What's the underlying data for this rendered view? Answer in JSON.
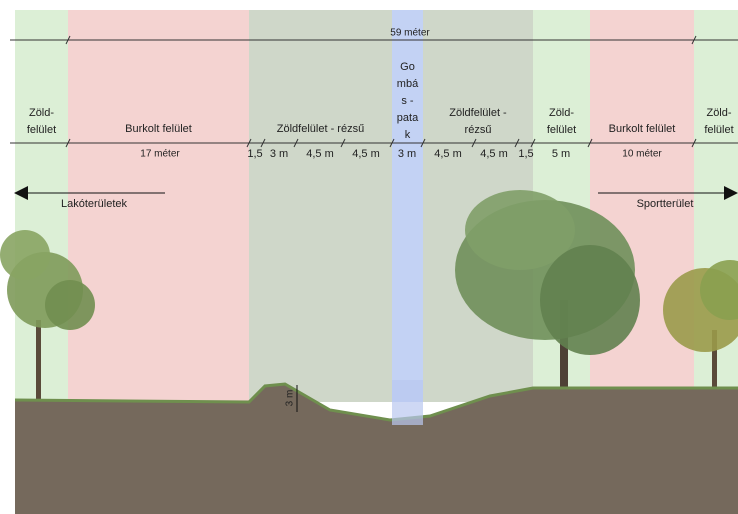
{
  "overall_dimension": "59 méter",
  "zones": [
    {
      "label": [
        "Zöld-",
        "felület"
      ]
    },
    {
      "label": [
        "Burkolt felület"
      ]
    },
    {
      "label": [
        "Zöldfelület - rézsű"
      ]
    },
    {
      "label": [
        "Go",
        "mbá",
        "s -",
        "pata",
        "k"
      ]
    },
    {
      "label": [
        "Zöldfelület -",
        "rézsű"
      ]
    },
    {
      "label": [
        "Zöld-",
        "felület"
      ]
    },
    {
      "label": [
        "Burkolt felület"
      ]
    },
    {
      "label": [
        "Zöld-",
        "felület"
      ]
    }
  ],
  "dimensions": [
    "17 méter",
    "1,5",
    "3 m",
    "4,5 m",
    "4,5 m",
    "3 m",
    "4,5 m",
    "4,5 m",
    "1,5",
    "5 m",
    "10 méter"
  ],
  "labels": {
    "left_arrow": "Lakóterületek",
    "right_arrow": "Sportterület",
    "depth": "3 m"
  }
}
